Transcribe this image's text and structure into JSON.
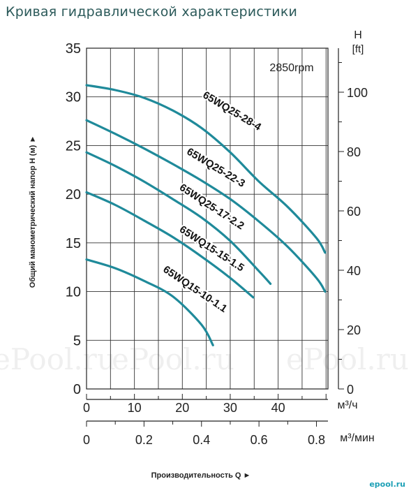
{
  "page": {
    "title": "Кривая гидравлической характеристики",
    "logo_text": "epool.ru"
  },
  "watermark": {
    "text": "ePool.ru"
  },
  "chart_data": {
    "type": "line",
    "title": "",
    "rpm_label": "2850rpm",
    "ylabel": "Общий манометрический напор H (м)",
    "ylabel_arrow": "►",
    "y_right_label_top": "H",
    "y_right_label_unit": "[ft]",
    "xlabel": "Производительность Q",
    "xlabel_arrow": "►",
    "x_unit_m3h": "м³/ч",
    "x_unit_m3min": "м³/мин",
    "ylim": [
      0,
      35
    ],
    "xlim_m3min": [
      0,
      0.84
    ],
    "y_ticks_m": [
      0,
      5,
      10,
      15,
      20,
      25,
      30,
      35
    ],
    "y_ticks_ft": [
      0,
      20,
      40,
      60,
      80,
      100
    ],
    "x_ticks_m3h": [
      0,
      10,
      20,
      30,
      40
    ],
    "x_ticks_m3min": [
      0,
      0.2,
      0.4,
      0.6,
      0.8
    ],
    "x_tick_labels_m3min": [
      "0",
      "0.2",
      "0.4",
      "0.6",
      "0.8"
    ],
    "grid": true,
    "line_color": "#1f8a9a",
    "series": [
      {
        "name": "65WQ25-28-4",
        "x_m3min": [
          0,
          0.1,
          0.2,
          0.3,
          0.4,
          0.5,
          0.6,
          0.7,
          0.8,
          0.83
        ],
        "y_m": [
          31.2,
          30.7,
          29.9,
          28.6,
          26.8,
          24.3,
          21.3,
          18.7,
          15.5,
          14.0
        ]
      },
      {
        "name": "65WQ25-22-3",
        "x_m3min": [
          0,
          0.1,
          0.2,
          0.3,
          0.4,
          0.5,
          0.6,
          0.7,
          0.8,
          0.83
        ],
        "y_m": [
          27.6,
          26.2,
          24.7,
          23.1,
          21.4,
          19.5,
          17.2,
          14.6,
          11.4,
          10.0
        ]
      },
      {
        "name": "65WQ25-17-2.2",
        "x_m3min": [
          0,
          0.1,
          0.2,
          0.3,
          0.4,
          0.5,
          0.6,
          0.64
        ],
        "y_m": [
          24.3,
          22.9,
          21.3,
          19.5,
          17.6,
          15.2,
          12.1,
          10.8
        ]
      },
      {
        "name": "65WQ15-15-1.5",
        "x_m3min": [
          0,
          0.1,
          0.2,
          0.3,
          0.4,
          0.5,
          0.58
        ],
        "y_m": [
          20.2,
          18.9,
          17.3,
          15.6,
          13.6,
          11.4,
          9.4
        ]
      },
      {
        "name": "65WQ15-10-1.1",
        "x_m3min": [
          0,
          0.1,
          0.2,
          0.3,
          0.4,
          0.44
        ],
        "y_m": [
          13.3,
          12.4,
          11.1,
          9.5,
          6.6,
          4.5
        ]
      }
    ]
  }
}
